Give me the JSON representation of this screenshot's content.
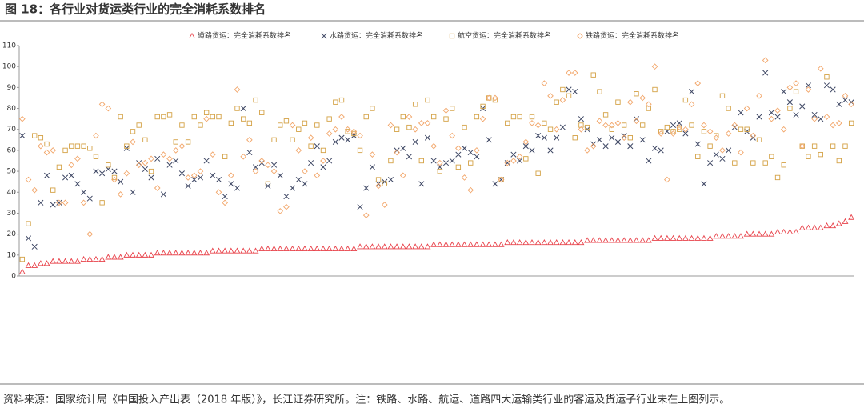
{
  "chart_data": {
    "type": "scatter",
    "title": "图 18：各行业对货运类行业的完全消耗系数排名",
    "source": "资料来源：国家统计局《中国投入产出表（2018 年版）》，长江证券研究所。注：铁路、水路、航运、道路四大运输类行业的客运及货运子行业未在上图列示。",
    "categories": [
      null,
      null,
      null,
      null,
      null,
      null,
      null,
      null,
      null,
      null,
      null,
      null,
      null,
      null,
      null,
      null,
      null,
      null,
      null,
      null,
      null,
      null,
      null,
      null,
      null,
      null,
      null,
      null,
      null,
      null,
      null,
      null,
      null,
      null,
      null,
      null,
      null,
      null,
      null,
      null,
      null,
      null,
      null,
      null,
      null,
      null,
      null,
      null,
      null,
      null,
      null,
      null,
      null,
      null,
      null,
      null,
      null,
      null,
      null,
      null,
      null,
      null,
      null,
      null,
      null,
      null,
      null,
      null,
      null,
      null,
      null,
      null,
      null,
      null,
      null,
      null,
      null,
      null,
      null,
      null,
      null,
      null,
      null,
      null,
      null,
      null,
      null,
      null,
      null,
      null,
      null,
      null,
      null,
      null,
      null,
      null,
      null,
      null,
      null,
      null,
      null,
      null,
      null,
      null,
      null,
      null,
      null,
      null,
      null,
      null,
      null,
      null,
      null,
      null,
      null,
      null,
      null,
      null,
      null,
      null,
      null,
      null,
      null,
      null,
      null,
      null,
      null,
      null,
      null,
      null,
      null,
      null,
      null,
      null,
      null,
      null
    ],
    "ylim": [
      0,
      110
    ],
    "yticks": [
      0,
      10,
      20,
      30,
      40,
      50,
      60,
      70,
      80,
      90,
      100,
      110
    ],
    "legend": "top",
    "series": [
      {
        "name": "道路货运：完全消耗系数排名",
        "marker": "triangle",
        "color": "#e8434b",
        "values": [
          2,
          5,
          5,
          6,
          6,
          7,
          7,
          7,
          7,
          7,
          8,
          8,
          8,
          8,
          9,
          9,
          9,
          10,
          10,
          10,
          10,
          10,
          11,
          11,
          11,
          11,
          11,
          11,
          11,
          11,
          11,
          12,
          12,
          12,
          12,
          12,
          12,
          12,
          12,
          13,
          13,
          13,
          13,
          13,
          13,
          13,
          13,
          13,
          13,
          13,
          13,
          13,
          13,
          13,
          13,
          14,
          14,
          14,
          14,
          14,
          14,
          14,
          14,
          14,
          14,
          14,
          14,
          15,
          15,
          15,
          15,
          15,
          15,
          15,
          15,
          15,
          15,
          15,
          15,
          16,
          16,
          16,
          16,
          16,
          16,
          16,
          16,
          16,
          16,
          16,
          16,
          16,
          17,
          17,
          17,
          17,
          17,
          17,
          17,
          17,
          17,
          17,
          17,
          18,
          18,
          18,
          18,
          18,
          18,
          18,
          18,
          18,
          18,
          19,
          19,
          19,
          19,
          19,
          20,
          20,
          20,
          20,
          20,
          21,
          21,
          21,
          21,
          23,
          23,
          23,
          23,
          24,
          24,
          25,
          26,
          28
        ]
      },
      {
        "name": "水路货运：完全消耗系数排名",
        "marker": "x",
        "color": "#3d4663",
        "values": [
          67,
          18,
          14,
          35,
          48,
          34,
          35,
          47,
          48,
          44,
          40,
          37,
          50,
          49,
          51,
          50,
          45,
          61,
          40,
          54,
          51,
          47,
          56,
          39,
          53,
          55,
          49,
          43,
          46,
          47,
          55,
          48,
          46,
          38,
          44,
          42,
          80,
          59,
          52,
          54,
          43,
          53,
          48,
          38,
          42,
          46,
          44,
          54,
          62,
          52,
          55,
          64,
          66,
          65,
          67,
          33,
          42,
          52,
          44,
          45,
          46,
          60,
          61,
          57,
          64,
          44,
          66,
          55,
          52,
          54,
          55,
          58,
          61,
          59,
          57,
          80,
          65,
          44,
          46,
          54,
          58,
          55,
          62,
          60,
          67,
          66,
          60,
          66,
          71,
          89,
          88,
          75,
          70,
          63,
          65,
          62,
          66,
          64,
          67,
          62,
          75,
          65,
          55,
          61,
          60,
          69,
          72,
          73,
          68,
          88,
          63,
          44,
          54,
          58,
          56,
          60,
          71,
          78,
          69,
          66,
          76,
          97,
          78,
          76,
          88,
          83,
          77,
          81,
          91,
          77,
          75,
          91,
          89,
          82,
          84,
          83
        ]
      },
      {
        "name": "航空货运：完全消耗系数排名",
        "marker": "square",
        "color": "#d4a246",
        "values": [
          8,
          25,
          67,
          66,
          63,
          41,
          52,
          60,
          62,
          62,
          62,
          61,
          57,
          35,
          53,
          47,
          76,
          62,
          69,
          72,
          65,
          50,
          76,
          76,
          77,
          64,
          72,
          64,
          76,
          72,
          78,
          76,
          76,
          57,
          73,
          80,
          75,
          73,
          84,
          78,
          44,
          65,
          72,
          74,
          65,
          70,
          73,
          62,
          72,
          60,
          75,
          83,
          84,
          69,
          68,
          60,
          76,
          80,
          46,
          44,
          55,
          70,
          76,
          71,
          82,
          55,
          84,
          76,
          50,
          75,
          80,
          52,
          71,
          54,
          76,
          81,
          85,
          84,
          46,
          73,
          76,
          76,
          56,
          76,
          49,
          73,
          70,
          83,
          89,
          86,
          66,
          72,
          71,
          96,
          88,
          77,
          70,
          83,
          72,
          66,
          87,
          72,
          80,
          89,
          69,
          71,
          69,
          70,
          84,
          72,
          57,
          69,
          62,
          67,
          86,
          80,
          54,
          70,
          70,
          54,
          65,
          54,
          57,
          47,
          53,
          80,
          88,
          62,
          57,
          62,
          58,
          95,
          62,
          55,
          62,
          73
        ]
      },
      {
        "name": "铁路货运：完全消耗系数排名",
        "marker": "diamond",
        "color": "#f2a66a",
        "values": [
          75,
          46,
          41,
          62,
          59,
          60,
          35,
          35,
          53,
          56,
          35,
          20,
          67,
          82,
          80,
          46,
          39,
          49,
          64,
          53,
          54,
          56,
          42,
          58,
          56,
          60,
          62,
          47,
          48,
          50,
          75,
          58,
          40,
          35,
          48,
          89,
          57,
          65,
          50,
          55,
          53,
          50,
          31,
          33,
          72,
          60,
          50,
          66,
          48,
          55,
          68,
          70,
          76,
          70,
          69,
          67,
          29,
          58,
          43,
          34,
          72,
          59,
          48,
          76,
          70,
          73,
          73,
          62,
          54,
          79,
          67,
          61,
          47,
          41,
          60,
          75,
          85,
          85,
          46,
          54,
          55,
          57,
          64,
          73,
          72,
          92,
          86,
          70,
          84,
          97,
          97,
          70,
          60,
          62,
          74,
          72,
          72,
          73,
          66,
          83,
          74,
          85,
          82,
          100,
          68,
          46,
          68,
          71,
          70,
          82,
          92,
          72,
          69,
          66,
          60,
          68,
          72,
          59,
          80,
          67,
          86,
          103,
          75,
          79,
          70,
          90,
          92,
          62,
          89,
          75,
          99,
          76,
          72,
          73,
          86,
          82
        ]
      }
    ]
  }
}
